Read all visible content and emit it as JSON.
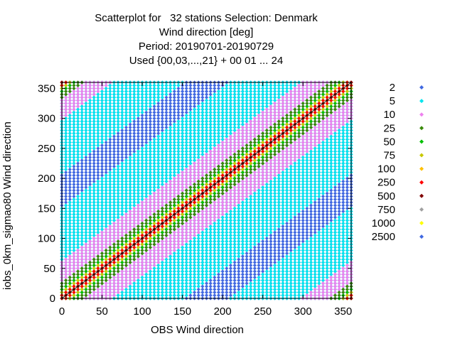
{
  "chart_data": {
    "type": "scatter",
    "title": [
      "Scatterplot for   32 stations Selection: Denmark",
      "Wind direction [deg]",
      "Period: 20190701-20190729",
      "Used {00,03,...,21} + 00 01 ... 24"
    ],
    "xlabel": "OBS Wind direction",
    "ylabel": "iobs_0km_sigmao80 Wind direction",
    "xlim": [
      0,
      360
    ],
    "ylim": [
      0,
      360
    ],
    "xticks": [
      0,
      50,
      100,
      150,
      200,
      250,
      300,
      350
    ],
    "yticks": [
      0,
      50,
      100,
      150,
      200,
      250,
      300,
      350
    ],
    "diagonal": [
      [
        0,
        0
      ],
      [
        360,
        360
      ]
    ],
    "legend_position": "right",
    "x_values": [
      0,
      5,
      10,
      15,
      20,
      25,
      30,
      35,
      40,
      45,
      50,
      55,
      60,
      65,
      70,
      75,
      80,
      85,
      90,
      95,
      100,
      105,
      110,
      115,
      120,
      125,
      130,
      135,
      140,
      145,
      150,
      155,
      160,
      165,
      170,
      175,
      180,
      185,
      190,
      195,
      200,
      205,
      210,
      215,
      220,
      225,
      230,
      235,
      240,
      245,
      250,
      255,
      260,
      265,
      270,
      275,
      280,
      285,
      290,
      295,
      300,
      305,
      310,
      315,
      320,
      325,
      330,
      335,
      340,
      345,
      350,
      355,
      360
    ],
    "y_step": 5,
    "series": [
      {
        "name": "2",
        "color": "#4169e1",
        "half_width": 360
      },
      {
        "name": "5",
        "color": "#00e5ee",
        "half_width": 150
      },
      {
        "name": "10",
        "color": "#ee82ee",
        "half_width": 60
      },
      {
        "name": "25",
        "color": "#3a8a0a",
        "half_width": 25
      },
      {
        "name": "50",
        "color": "#00c000",
        "half_width": 18
      },
      {
        "name": "75",
        "color": "#c8c800",
        "half_width": 12
      },
      {
        "name": "100",
        "color": "#ffc000",
        "half_width": 9
      },
      {
        "name": "250",
        "color": "#ff0000",
        "half_width": 6
      },
      {
        "name": "500",
        "color": "#800000",
        "half_width": 3
      },
      {
        "name": "750",
        "color": "#a0a0a0",
        "half_width": 0
      },
      {
        "name": "1000",
        "color": "#ffff00",
        "half_width": 0
      },
      {
        "name": "2500",
        "color": "#4169e1",
        "half_width": 0
      }
    ]
  }
}
